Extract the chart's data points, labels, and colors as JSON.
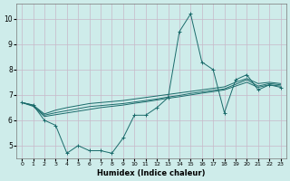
{
  "xlabel": "Humidex (Indice chaleur)",
  "bg_color": "#ceecea",
  "grid_color": "#c8b8c8",
  "line_color": "#1a6b6b",
  "xlim": [
    -0.5,
    23.5
  ],
  "ylim": [
    4.5,
    10.6
  ],
  "yticks": [
    5,
    6,
    7,
    8,
    9,
    10
  ],
  "xticks": [
    0,
    1,
    2,
    3,
    4,
    5,
    6,
    7,
    8,
    9,
    10,
    11,
    12,
    13,
    14,
    15,
    16,
    17,
    18,
    19,
    20,
    21,
    22,
    23
  ],
  "x": [
    0,
    1,
    2,
    3,
    4,
    5,
    6,
    7,
    8,
    9,
    10,
    11,
    12,
    13,
    14,
    15,
    16,
    17,
    18,
    19,
    20,
    21,
    22,
    23
  ],
  "line1": [
    6.7,
    6.6,
    6.0,
    5.8,
    4.7,
    5.0,
    4.8,
    4.8,
    4.7,
    5.3,
    6.2,
    6.2,
    6.5,
    6.9,
    9.5,
    10.2,
    8.3,
    8.0,
    6.3,
    7.6,
    7.8,
    7.2,
    7.4,
    7.3
  ],
  "line2": [
    6.7,
    6.55,
    6.15,
    6.22,
    6.29,
    6.36,
    6.43,
    6.5,
    6.55,
    6.6,
    6.67,
    6.73,
    6.8,
    6.87,
    6.93,
    7.0,
    7.07,
    7.13,
    7.2,
    7.35,
    7.5,
    7.3,
    7.4,
    7.35
  ],
  "line3": [
    6.7,
    6.58,
    6.2,
    6.3,
    6.38,
    6.46,
    6.54,
    6.58,
    6.62,
    6.66,
    6.72,
    6.78,
    6.84,
    6.92,
    6.98,
    7.06,
    7.12,
    7.18,
    7.24,
    7.42,
    7.6,
    7.35,
    7.45,
    7.4
  ],
  "line4": [
    6.7,
    6.6,
    6.25,
    6.4,
    6.5,
    6.58,
    6.66,
    6.7,
    6.74,
    6.78,
    6.84,
    6.9,
    6.96,
    7.02,
    7.08,
    7.14,
    7.2,
    7.26,
    7.32,
    7.5,
    7.65,
    7.45,
    7.5,
    7.45
  ]
}
